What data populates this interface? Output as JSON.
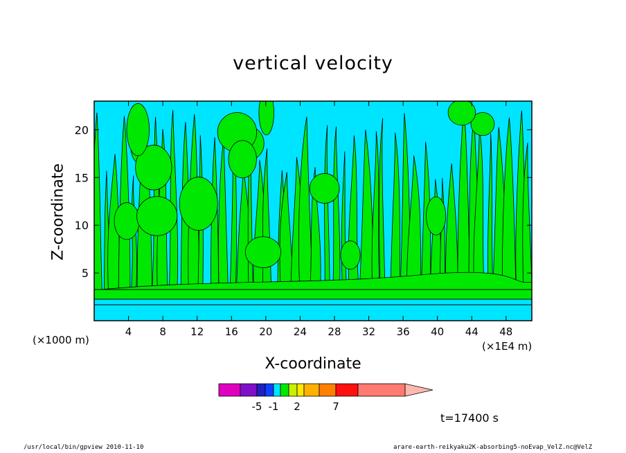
{
  "chart_data": {
    "type": "heatmap",
    "title": "vertical velocity",
    "xlabel": "X-coordinate",
    "ylabel": "Z-coordinate",
    "x_unit_left": "(×1000 m)",
    "x_unit_right": "(×1E4 m)",
    "x_ticks": [
      4,
      8,
      12,
      16,
      20,
      24,
      28,
      32,
      36,
      40,
      44,
      48
    ],
    "y_ticks": [
      5,
      10,
      15,
      20
    ],
    "xlim": [
      0,
      51
    ],
    "ylim": [
      0,
      23
    ],
    "field_levels": [
      {
        "range": "-1 to 0",
        "color": "#00e5ff"
      },
      {
        "range": "0 to 1",
        "color": "#00e800"
      }
    ],
    "colorbar": {
      "colors": [
        "#e000c0",
        "#8010c8",
        "#2020c0",
        "#1040ff",
        "#00e5ff",
        "#00e800",
        "#c8f000",
        "#ffe800",
        "#ffb000",
        "#ff8000",
        "#ff1010",
        "#ff7a70",
        "#ffb8b0"
      ],
      "labels": [
        {
          "text": "-5",
          "value": -5
        },
        {
          "text": "-1",
          "value": -1
        },
        {
          "text": "2",
          "value": 2
        },
        {
          "text": "7",
          "value": 7
        }
      ]
    },
    "time_label": "t=17400 s"
  },
  "footer": {
    "left": "/usr/local/bin/gpview  2010-11-10",
    "right": "arare-earth-reikyaku2K-absorbing5-noEvap_VelZ.nc@VelZ"
  }
}
